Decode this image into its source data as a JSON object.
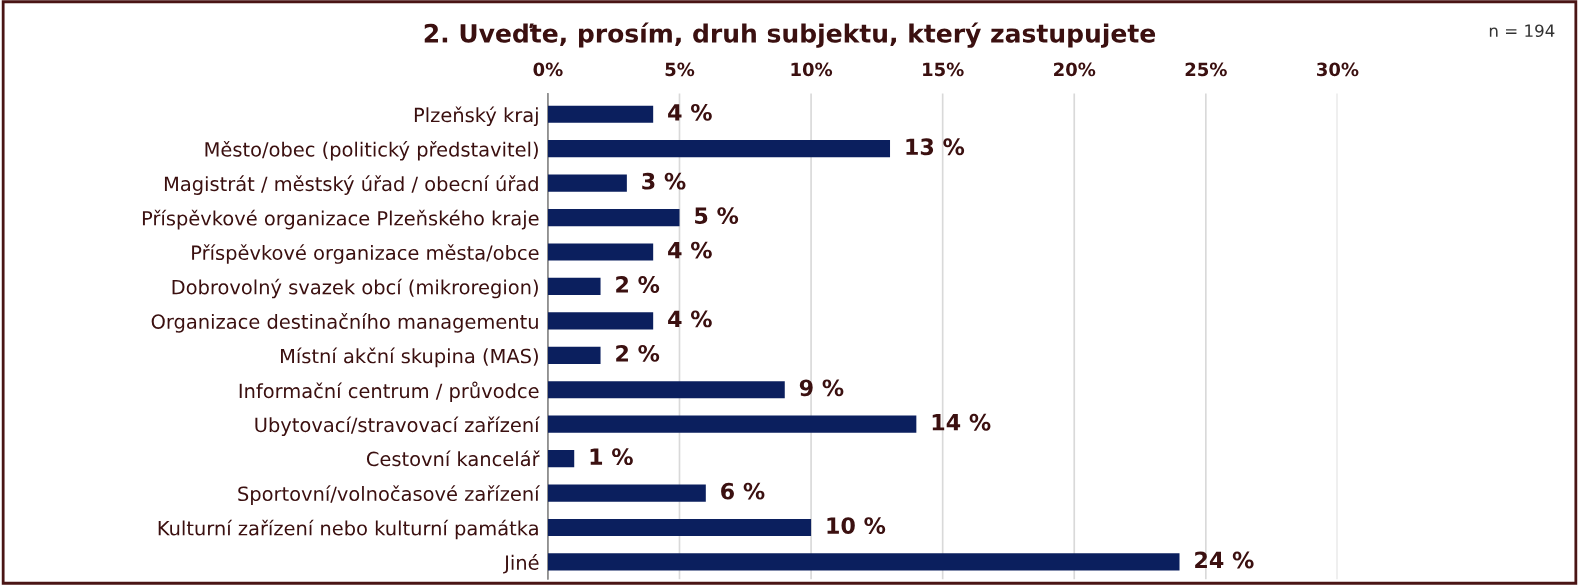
{
  "chart_data": {
    "type": "bar",
    "orientation": "horizontal",
    "title": "2. Uveďte, prosím, druh subjektu, který zastupujete",
    "annotations": [
      "n = 194"
    ],
    "categories": [
      "Plzeňský kraj",
      "Město/obec (politický představitel)",
      "Magistrát / městský úřad / obecní úřad",
      "Příspěvkové organizace Plzeňského kraje",
      "Příspěvkové organizace města/obce",
      "Dobrovolný svazek obcí (mikroregion)",
      "Organizace destinačního managementu",
      "Místní akční skupina (MAS)",
      "Informační centrum / průvodce",
      "Ubytovací/stravovací zařízení",
      "Cestovní kancelář",
      "Sportovní/volnočasové zařízení",
      "Kulturní zařízení nebo kulturní památka",
      "Jiné"
    ],
    "values": [
      4,
      13,
      3,
      5,
      4,
      2,
      4,
      2,
      9,
      14,
      1,
      6,
      10,
      24
    ],
    "value_labels": [
      "4 %",
      "13 %",
      "3 %",
      "5 %",
      "4 %",
      "2 %",
      "4 %",
      "2 %",
      "9 %",
      "14 %",
      "1 %",
      "6 %",
      "10 %",
      "24 %"
    ],
    "color": "#0b1f5e",
    "xlim": [
      0,
      30
    ],
    "xticks": [
      {
        "value": 0,
        "label": "0%"
      },
      {
        "value": 5,
        "label": "5%"
      },
      {
        "value": 10,
        "label": "10%"
      },
      {
        "value": 15,
        "label": "15%"
      },
      {
        "value": 20,
        "label": "20%"
      },
      {
        "value": 25,
        "label": "25%"
      },
      {
        "value": 30,
        "label": "30%"
      }
    ],
    "grid": "x"
  }
}
